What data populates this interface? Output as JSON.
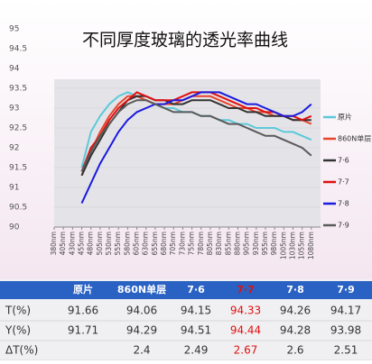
{
  "chart_data": {
    "type": "line",
    "title": "不同厚度玻璃的透光率曲线",
    "x": [
      455,
      480,
      505,
      530,
      555,
      580,
      605,
      630,
      655,
      680,
      705,
      730,
      755,
      780,
      805,
      830,
      855,
      880,
      905,
      930,
      955,
      980,
      1005,
      1030,
      1055,
      1080
    ],
    "xlim": [
      380,
      1105
    ],
    "xticks": [
      {
        "value": 380,
        "label": "380nm"
      },
      {
        "value": 405,
        "label": "405nm"
      },
      {
        "value": 430,
        "label": "430nm"
      },
      {
        "value": 455,
        "label": "455nm"
      },
      {
        "value": 480,
        "label": "480nm"
      },
      {
        "value": 505,
        "label": "505nm"
      },
      {
        "value": 530,
        "label": "530nm"
      },
      {
        "value": 555,
        "label": "555nm"
      },
      {
        "value": 580,
        "label": "580nm"
      },
      {
        "value": 605,
        "label": "605nm"
      },
      {
        "value": 630,
        "label": "630nm"
      },
      {
        "value": 655,
        "label": "655nm"
      },
      {
        "value": 680,
        "label": "680nm"
      },
      {
        "value": 705,
        "label": "705nm"
      },
      {
        "value": 730,
        "label": "730nm"
      },
      {
        "value": 755,
        "label": "755nm"
      },
      {
        "value": 780,
        "label": "780nm"
      },
      {
        "value": 805,
        "label": "805nm"
      },
      {
        "value": 830,
        "label": "830nm"
      },
      {
        "value": 855,
        "label": "855nm"
      },
      {
        "value": 880,
        "label": "880nm"
      },
      {
        "value": 905,
        "label": "905nm"
      },
      {
        "value": 930,
        "label": "930nm"
      },
      {
        "value": 955,
        "label": "955nm"
      },
      {
        "value": 980,
        "label": "980nm"
      },
      {
        "value": 1005,
        "label": "1005nm"
      },
      {
        "value": 1030,
        "label": "1030nm"
      },
      {
        "value": 1055,
        "label": "1055nm"
      },
      {
        "value": 1080,
        "label": "1080nm"
      }
    ],
    "ylim": [
      90,
      95
    ],
    "yticks": [
      90,
      90.5,
      91,
      91.5,
      92,
      92.5,
      93,
      93.5,
      94,
      94.5,
      95
    ],
    "grid": true,
    "series": [
      {
        "name": "原片",
        "color": "#5cc9d9",
        "values": [
          91.5,
          92.4,
          92.8,
          93.1,
          93.3,
          93.4,
          93.3,
          93.2,
          93.1,
          93.0,
          93.0,
          92.9,
          92.9,
          92.8,
          92.8,
          92.7,
          92.7,
          92.6,
          92.6,
          92.5,
          92.5,
          92.5,
          92.4,
          92.4,
          92.3,
          92.2
        ]
      },
      {
        "name": "860N单层",
        "color": "#e8452c",
        "values": [
          91.3,
          91.9,
          92.4,
          92.8,
          93.1,
          93.3,
          93.3,
          93.2,
          93.1,
          93.1,
          93.1,
          93.2,
          93.3,
          93.3,
          93.3,
          93.2,
          93.1,
          93.0,
          93.0,
          92.9,
          92.9,
          92.8,
          92.8,
          92.7,
          92.7,
          92.6
        ]
      },
      {
        "name": "7·6",
        "color": "#333333",
        "values": [
          91.3,
          91.8,
          92.2,
          92.6,
          92.9,
          93.2,
          93.3,
          93.3,
          93.2,
          93.2,
          93.1,
          93.1,
          93.2,
          93.2,
          93.2,
          93.1,
          93.0,
          93.0,
          92.9,
          92.9,
          92.8,
          92.8,
          92.8,
          92.7,
          92.7,
          92.7
        ]
      },
      {
        "name": "7·7",
        "color": "#e01010",
        "values": [
          91.4,
          92.0,
          92.3,
          92.7,
          93.0,
          93.2,
          93.4,
          93.3,
          93.2,
          93.2,
          93.2,
          93.3,
          93.4,
          93.4,
          93.4,
          93.3,
          93.2,
          93.1,
          93.0,
          93.0,
          92.9,
          92.9,
          92.8,
          92.8,
          92.7,
          92.8
        ]
      },
      {
        "name": "7·8",
        "color": "#1a1ae0",
        "values": [
          90.6,
          91.1,
          91.6,
          92.0,
          92.4,
          92.7,
          92.9,
          93.0,
          93.1,
          93.1,
          93.2,
          93.2,
          93.3,
          93.4,
          93.4,
          93.4,
          93.3,
          93.2,
          93.1,
          93.1,
          93.0,
          92.9,
          92.8,
          92.8,
          92.9,
          93.1
        ]
      },
      {
        "name": "7·9",
        "color": "#5a5a5a",
        "values": [
          91.4,
          91.9,
          92.3,
          92.6,
          92.9,
          93.1,
          93.2,
          93.2,
          93.1,
          93.0,
          92.9,
          92.9,
          92.9,
          92.8,
          92.8,
          92.7,
          92.6,
          92.6,
          92.5,
          92.4,
          92.3,
          92.3,
          92.2,
          92.1,
          92.0,
          91.8
        ]
      }
    ]
  },
  "table": {
    "rows": [
      {
        "label": "T(%)",
        "values": [
          91.66,
          94.06,
          94.15,
          94.33,
          94.26,
          94.17
        ]
      },
      {
        "label": "Y(%)",
        "values": [
          91.71,
          94.29,
          94.51,
          94.44,
          94.28,
          93.98
        ]
      },
      {
        "label": "ΔT(%)",
        "values": [
          null,
          2.4,
          2.49,
          2.67,
          2.6,
          2.51
        ]
      }
    ],
    "highlight_color": "#e01010",
    "highlight_column": 3
  }
}
